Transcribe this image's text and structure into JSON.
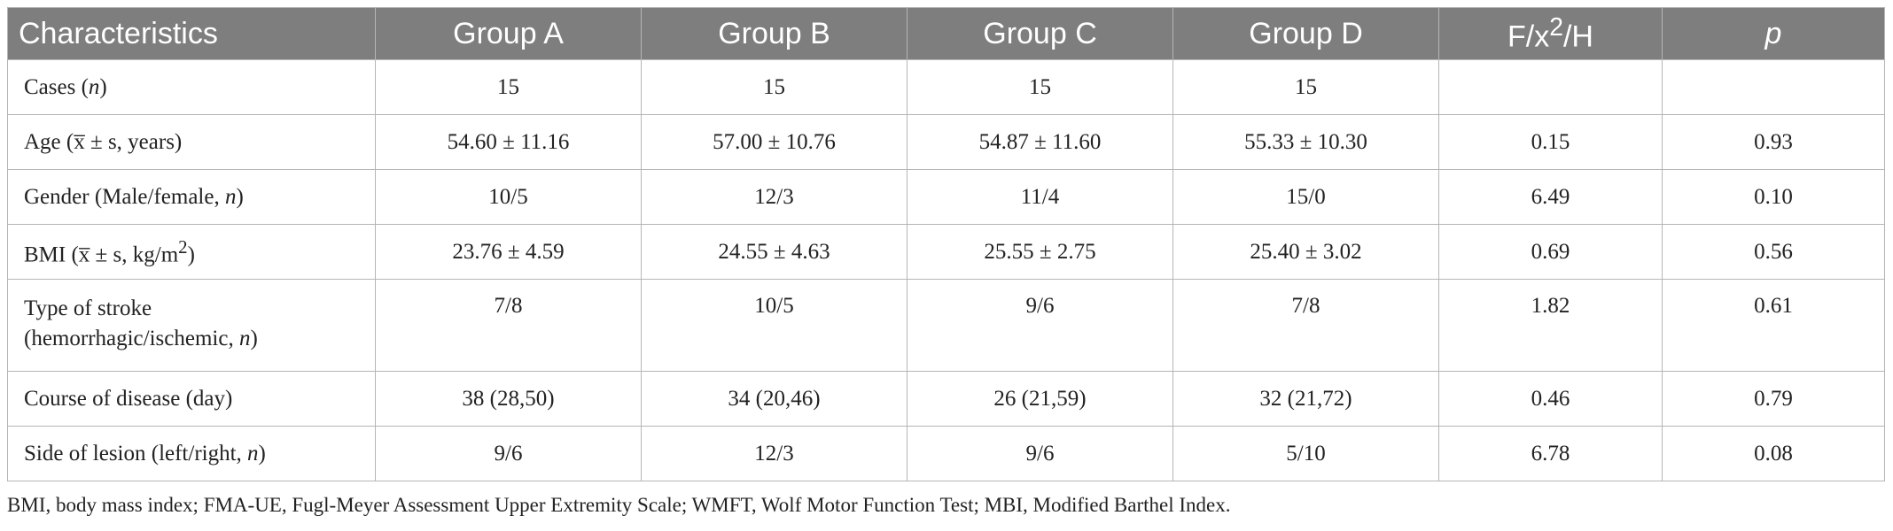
{
  "table": {
    "headers": {
      "characteristics": "Characteristics",
      "groups": [
        "Group A",
        "Group B",
        "Group C",
        "Group D"
      ],
      "stat_prefix": "F/x",
      "stat_sup": "2",
      "stat_suffix": "/H",
      "p": "p"
    },
    "rows": [
      {
        "label_parts": [
          "Cases (",
          "n",
          ")"
        ],
        "values": [
          "15",
          "15",
          "15",
          "15"
        ],
        "stat": "",
        "p": ""
      },
      {
        "label_parts": [
          "Age (x̅ ± s, years)"
        ],
        "values": [
          "54.60 ± 11.16",
          "57.00 ± 10.76",
          "54.87 ± 11.60",
          "55.33 ± 10.30"
        ],
        "stat": "0.15",
        "p": "0.93"
      },
      {
        "label_parts": [
          "Gender (Male/female, ",
          "n",
          ")"
        ],
        "values": [
          "10/5",
          "12/3",
          "11/4",
          "15/0"
        ],
        "stat": "6.49",
        "p": "0.10"
      },
      {
        "label_parts": [
          "BMI (x̅ ± s, kg/m",
          "2",
          ")"
        ],
        "values": [
          "23.76 ± 4.59",
          "24.55 ± 4.63",
          "25.55 ± 2.75",
          "25.40 ± 3.02"
        ],
        "stat": "0.69",
        "p": "0.56"
      },
      {
        "label_parts": [
          "Type of stroke",
          "(hemorrhagic/ischemic, ",
          "n",
          ")"
        ],
        "values": [
          "7/8",
          "10/5",
          "9/6",
          "7/8"
        ],
        "stat": "1.82",
        "p": "0.61"
      },
      {
        "label_parts": [
          "Course of disease (day)"
        ],
        "values": [
          "38 (28,50)",
          "34 (20,46)",
          "26 (21,59)",
          "32 (21,72)"
        ],
        "stat": "0.46",
        "p": "0.79"
      },
      {
        "label_parts": [
          "Side of lesion (left/right, ",
          "n",
          ")"
        ],
        "values": [
          "9/6",
          "12/3",
          "9/6",
          "5/10"
        ],
        "stat": "6.78",
        "p": "0.08"
      }
    ]
  },
  "footnote": "BMI, body mass index; FMA-UE, Fugl-Meyer Assessment Upper Extremity Scale; WMFT, Wolf Motor Function Test; MBI, Modified Barthel Index.",
  "colors": {
    "header_bg": "#7e7e7e",
    "header_text": "#ffffff",
    "border": "#b5b5b5",
    "body_text": "#222222"
  }
}
